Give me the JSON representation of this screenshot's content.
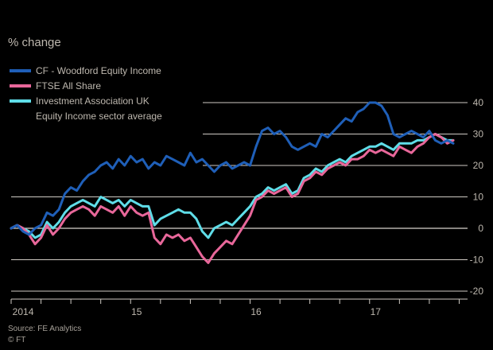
{
  "chart_data": {
    "type": "line",
    "title": "% change",
    "ylim": [
      -20,
      40
    ],
    "yticks": [
      40,
      30,
      20,
      10,
      0,
      -10,
      -20
    ],
    "ytick_labels": [
      "40",
      "30",
      "20",
      "10",
      "0",
      "-10",
      "-20"
    ],
    "xlim": [
      2014.0,
      2017.82
    ],
    "xticks": [
      2014.0,
      2014.25,
      2014.5,
      2014.75,
      2015.0,
      2015.25,
      2015.5,
      2015.75,
      2016.0,
      2016.25,
      2016.5,
      2016.75,
      2017.0,
      2017.25,
      2017.5,
      2017.75
    ],
    "xtick_labels": [
      {
        "x": 2014.1,
        "label": "2014"
      },
      {
        "x": 2015.05,
        "label": "15"
      },
      {
        "x": 2016.05,
        "label": "16"
      },
      {
        "x": 2017.05,
        "label": "17"
      }
    ],
    "grid": true,
    "legend_position": "top-left",
    "series": [
      {
        "name": "CF - Woodford Equity Income",
        "color": "#1f5fb8",
        "points": [
          [
            2014.0,
            0
          ],
          [
            2014.05,
            1
          ],
          [
            2014.1,
            -1
          ],
          [
            2014.15,
            -2
          ],
          [
            2014.2,
            0
          ],
          [
            2014.25,
            1
          ],
          [
            2014.3,
            5
          ],
          [
            2014.35,
            4
          ],
          [
            2014.4,
            6
          ],
          [
            2014.45,
            11
          ],
          [
            2014.5,
            13
          ],
          [
            2014.55,
            12
          ],
          [
            2014.6,
            15
          ],
          [
            2014.65,
            17
          ],
          [
            2014.7,
            18
          ],
          [
            2014.75,
            20
          ],
          [
            2014.8,
            21
          ],
          [
            2014.85,
            19
          ],
          [
            2014.9,
            22
          ],
          [
            2014.95,
            20
          ],
          [
            2015.0,
            23
          ],
          [
            2015.05,
            21
          ],
          [
            2015.1,
            22
          ],
          [
            2015.15,
            19
          ],
          [
            2015.2,
            21
          ],
          [
            2015.25,
            20
          ],
          [
            2015.3,
            23
          ],
          [
            2015.35,
            22
          ],
          [
            2015.4,
            21
          ],
          [
            2015.45,
            20
          ],
          [
            2015.5,
            24
          ],
          [
            2015.55,
            21
          ],
          [
            2015.6,
            22
          ],
          [
            2015.65,
            20
          ],
          [
            2015.7,
            18
          ],
          [
            2015.75,
            20
          ],
          [
            2015.8,
            21
          ],
          [
            2015.85,
            19
          ],
          [
            2015.9,
            20
          ],
          [
            2015.95,
            21
          ],
          [
            2016.0,
            20
          ],
          [
            2016.05,
            26
          ],
          [
            2016.1,
            31
          ],
          [
            2016.15,
            32
          ],
          [
            2016.2,
            30
          ],
          [
            2016.25,
            31
          ],
          [
            2016.3,
            29
          ],
          [
            2016.35,
            26
          ],
          [
            2016.4,
            25
          ],
          [
            2016.45,
            26
          ],
          [
            2016.5,
            27
          ],
          [
            2016.55,
            26
          ],
          [
            2016.6,
            30
          ],
          [
            2016.65,
            29
          ],
          [
            2016.7,
            31
          ],
          [
            2016.75,
            33
          ],
          [
            2016.8,
            35
          ],
          [
            2016.85,
            34
          ],
          [
            2016.9,
            37
          ],
          [
            2016.95,
            38
          ],
          [
            2017.0,
            40
          ],
          [
            2017.05,
            40
          ],
          [
            2017.1,
            39
          ],
          [
            2017.15,
            36
          ],
          [
            2017.2,
            30
          ],
          [
            2017.25,
            29
          ],
          [
            2017.3,
            30
          ],
          [
            2017.35,
            31
          ],
          [
            2017.4,
            30
          ],
          [
            2017.45,
            29
          ],
          [
            2017.5,
            31
          ],
          [
            2017.55,
            28
          ],
          [
            2017.6,
            27
          ],
          [
            2017.65,
            28
          ],
          [
            2017.7,
            27
          ]
        ]
      },
      {
        "name": "FTSE All Share",
        "color": "#e8679a",
        "points": [
          [
            2014.0,
            0
          ],
          [
            2014.05,
            1
          ],
          [
            2014.1,
            0
          ],
          [
            2014.15,
            -2
          ],
          [
            2014.2,
            -5
          ],
          [
            2014.25,
            -3
          ],
          [
            2014.3,
            1
          ],
          [
            2014.35,
            -2
          ],
          [
            2014.4,
            0
          ],
          [
            2014.45,
            3
          ],
          [
            2014.5,
            5
          ],
          [
            2014.55,
            6
          ],
          [
            2014.6,
            7
          ],
          [
            2014.65,
            6
          ],
          [
            2014.7,
            4
          ],
          [
            2014.75,
            7
          ],
          [
            2014.8,
            6
          ],
          [
            2014.85,
            5
          ],
          [
            2014.9,
            7
          ],
          [
            2014.95,
            4
          ],
          [
            2015.0,
            7
          ],
          [
            2015.05,
            5
          ],
          [
            2015.1,
            4
          ],
          [
            2015.15,
            5
          ],
          [
            2015.2,
            -3
          ],
          [
            2015.25,
            -5
          ],
          [
            2015.3,
            -2
          ],
          [
            2015.35,
            -3
          ],
          [
            2015.4,
            -2
          ],
          [
            2015.45,
            -4
          ],
          [
            2015.5,
            -3
          ],
          [
            2015.55,
            -6
          ],
          [
            2015.6,
            -9
          ],
          [
            2015.65,
            -11
          ],
          [
            2015.7,
            -8
          ],
          [
            2015.75,
            -6
          ],
          [
            2015.8,
            -4
          ],
          [
            2015.85,
            -5
          ],
          [
            2015.9,
            -2
          ],
          [
            2015.95,
            1
          ],
          [
            2016.0,
            4
          ],
          [
            2016.05,
            9
          ],
          [
            2016.1,
            10
          ],
          [
            2016.15,
            12
          ],
          [
            2016.2,
            11
          ],
          [
            2016.25,
            12
          ],
          [
            2016.3,
            13
          ],
          [
            2016.35,
            10
          ],
          [
            2016.4,
            11
          ],
          [
            2016.45,
            15
          ],
          [
            2016.5,
            16
          ],
          [
            2016.55,
            18
          ],
          [
            2016.6,
            17
          ],
          [
            2016.65,
            19
          ],
          [
            2016.7,
            20
          ],
          [
            2016.75,
            21
          ],
          [
            2016.8,
            20
          ],
          [
            2016.85,
            22
          ],
          [
            2016.9,
            22
          ],
          [
            2016.95,
            23
          ],
          [
            2017.0,
            25
          ],
          [
            2017.05,
            24
          ],
          [
            2017.1,
            25
          ],
          [
            2017.15,
            24
          ],
          [
            2017.2,
            23
          ],
          [
            2017.25,
            26
          ],
          [
            2017.3,
            25
          ],
          [
            2017.35,
            24
          ],
          [
            2017.4,
            26
          ],
          [
            2017.45,
            27
          ],
          [
            2017.5,
            29
          ],
          [
            2017.55,
            30
          ],
          [
            2017.6,
            29
          ],
          [
            2017.65,
            27
          ],
          [
            2017.7,
            28
          ]
        ]
      },
      {
        "name": "Investment Association UK Equity Income sector average",
        "legend_lines": [
          "Investment Association UK",
          "Equity Income sector average"
        ],
        "color": "#5fdde8",
        "points": [
          [
            2014.0,
            0
          ],
          [
            2014.05,
            1
          ],
          [
            2014.1,
            0
          ],
          [
            2014.15,
            -1
          ],
          [
            2014.2,
            -3
          ],
          [
            2014.25,
            -2
          ],
          [
            2014.3,
            2
          ],
          [
            2014.35,
            0
          ],
          [
            2014.4,
            2
          ],
          [
            2014.45,
            5
          ],
          [
            2014.5,
            7
          ],
          [
            2014.55,
            8
          ],
          [
            2014.6,
            9
          ],
          [
            2014.65,
            8
          ],
          [
            2014.7,
            7
          ],
          [
            2014.75,
            10
          ],
          [
            2014.8,
            9
          ],
          [
            2014.85,
            8
          ],
          [
            2014.9,
            9
          ],
          [
            2014.95,
            7
          ],
          [
            2015.0,
            9
          ],
          [
            2015.05,
            8
          ],
          [
            2015.1,
            7
          ],
          [
            2015.15,
            7
          ],
          [
            2015.2,
            1
          ],
          [
            2015.25,
            3
          ],
          [
            2015.3,
            4
          ],
          [
            2015.35,
            5
          ],
          [
            2015.4,
            6
          ],
          [
            2015.45,
            5
          ],
          [
            2015.5,
            5
          ],
          [
            2015.55,
            3
          ],
          [
            2015.6,
            -1
          ],
          [
            2015.65,
            -3
          ],
          [
            2015.7,
            0
          ],
          [
            2015.75,
            1
          ],
          [
            2015.8,
            2
          ],
          [
            2015.85,
            1
          ],
          [
            2015.9,
            3
          ],
          [
            2015.95,
            5
          ],
          [
            2016.0,
            7
          ],
          [
            2016.05,
            10
          ],
          [
            2016.1,
            11
          ],
          [
            2016.15,
            13
          ],
          [
            2016.2,
            12
          ],
          [
            2016.25,
            13
          ],
          [
            2016.3,
            14
          ],
          [
            2016.35,
            11
          ],
          [
            2016.4,
            12
          ],
          [
            2016.45,
            16
          ],
          [
            2016.5,
            17
          ],
          [
            2016.55,
            19
          ],
          [
            2016.6,
            18
          ],
          [
            2016.65,
            20
          ],
          [
            2016.7,
            21
          ],
          [
            2016.75,
            22
          ],
          [
            2016.8,
            21
          ],
          [
            2016.85,
            23
          ],
          [
            2016.9,
            24
          ],
          [
            2016.95,
            25
          ],
          [
            2017.0,
            26
          ],
          [
            2017.05,
            26
          ],
          [
            2017.1,
            27
          ],
          [
            2017.15,
            26
          ],
          [
            2017.2,
            25
          ],
          [
            2017.25,
            27
          ],
          [
            2017.3,
            27
          ],
          [
            2017.35,
            27
          ],
          [
            2017.4,
            28
          ],
          [
            2017.45,
            28
          ],
          [
            2017.5,
            29
          ],
          [
            2017.55,
            30
          ],
          [
            2017.6,
            29
          ],
          [
            2017.65,
            28
          ],
          [
            2017.7,
            28
          ]
        ]
      }
    ],
    "source": "Source: FE Analytics",
    "credit": "© FT"
  }
}
